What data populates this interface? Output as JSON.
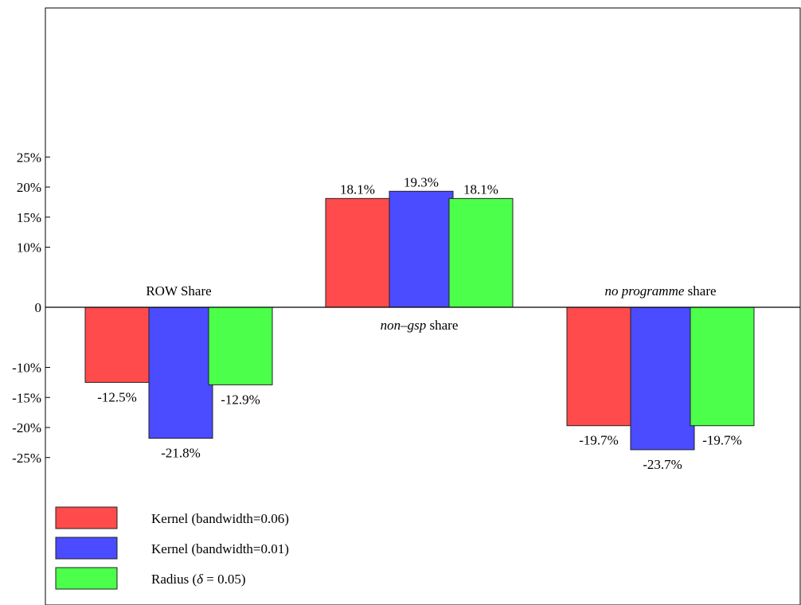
{
  "chart_data": {
    "type": "bar",
    "categories": [
      "ROW Share",
      "non–gsp share",
      "no programme share"
    ],
    "category_labels": [
      {
        "parts": [
          {
            "text": "ROW Share",
            "italic": false
          }
        ]
      },
      {
        "parts": [
          {
            "text": "non–gsp",
            "italic": true
          },
          {
            "text": " share",
            "italic": false
          }
        ]
      },
      {
        "parts": [
          {
            "text": "no programme",
            "italic": true
          },
          {
            "text": " share",
            "italic": false
          }
        ]
      }
    ],
    "series": [
      {
        "name": "Kernel (bandwidth=0.06)",
        "color": "#ff4b4b",
        "values": [
          -12.5,
          18.1,
          -19.7
        ]
      },
      {
        "name": "Kernel (bandwidth=0.01)",
        "color": "#4b4bff",
        "values": [
          -21.8,
          19.3,
          -23.7
        ]
      },
      {
        "name": "Radius (δ = 0.05)",
        "color": "#4bff4b",
        "values": [
          -12.9,
          18.1,
          -19.7
        ]
      }
    ],
    "data_labels": [
      [
        "-12.5%",
        "18.1%",
        "-19.7%"
      ],
      [
        "-21.8%",
        "19.3%",
        "-23.7%"
      ],
      [
        "-12.9%",
        "18.1%",
        "-19.7%"
      ]
    ],
    "yticks": [
      25,
      20,
      15,
      10,
      0,
      -10,
      -15,
      -20,
      -25
    ],
    "ytick_labels": [
      "25%",
      "20%",
      "15%",
      "10%",
      "0",
      "-10%",
      "-15%",
      "-20%",
      "-25%"
    ],
    "ylim": [
      -50,
      50
    ],
    "title": "",
    "xlabel": "",
    "ylabel": "",
    "grid": false,
    "legend_position": "bottom-left",
    "legend_labels": [
      {
        "parts": [
          {
            "text": "Kernel (bandwidth=0.06)",
            "italic": false
          }
        ]
      },
      {
        "parts": [
          {
            "text": "Kernel (bandwidth=0.01)",
            "italic": false
          }
        ]
      },
      {
        "parts": [
          {
            "text": "Radius (",
            "italic": false
          },
          {
            "text": "δ",
            "italic": true
          },
          {
            "text": " = 0.05)",
            "italic": false
          }
        ]
      }
    ]
  }
}
